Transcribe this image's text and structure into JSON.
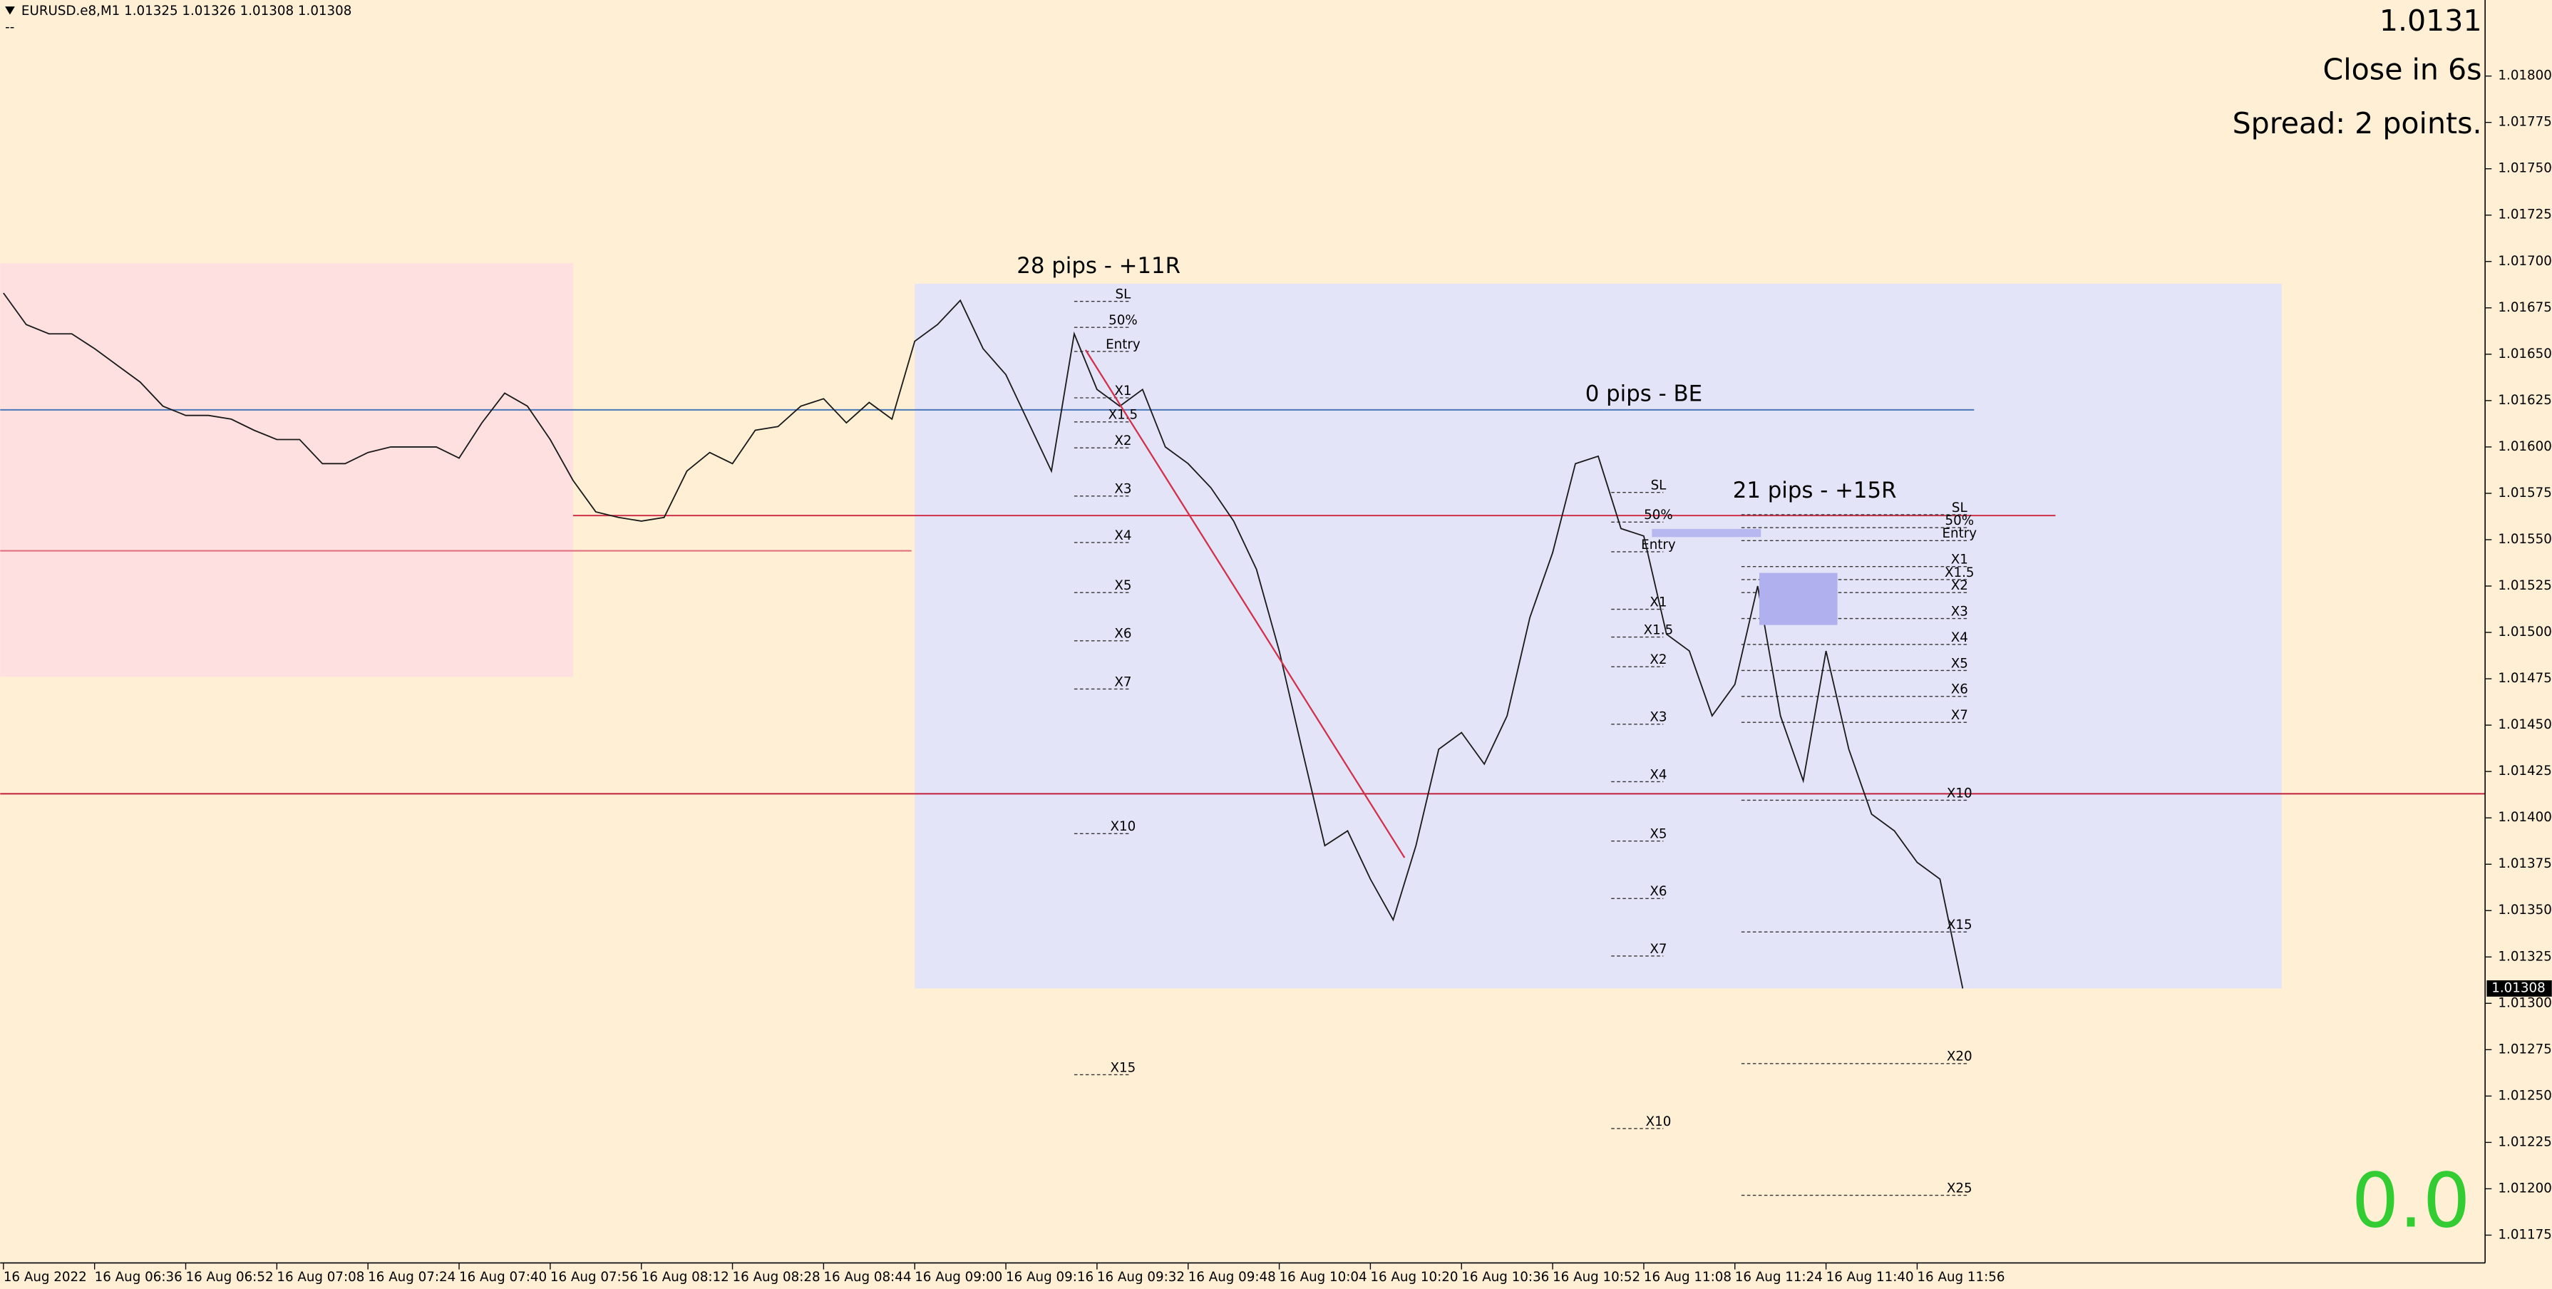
{
  "header": {
    "symbol_line": "EURUSD.e8,M1  1.01325 1.01326 1.01308 1.01308",
    "sub": "--"
  },
  "info": {
    "price": "1.0131",
    "countdown": "Close in 6s",
    "spread": "Spread: 2 points.",
    "profit": "0.0"
  },
  "chart": {
    "type": "price-line",
    "color": "#1a1a1a",
    "values": [
      1.01683,
      1.01666,
      1.01661,
      1.01661,
      1.01653,
      1.01644,
      1.01635,
      1.01622,
      1.01617,
      1.01617,
      1.01615,
      1.01609,
      1.01604,
      1.01604,
      1.01591,
      1.01591,
      1.01597,
      1.016,
      1.016,
      1.016,
      1.01594,
      1.01613,
      1.01629,
      1.01622,
      1.01604,
      1.01582,
      1.01565,
      1.01562,
      1.0156,
      1.01562,
      1.01587,
      1.01597,
      1.01591,
      1.01609,
      1.01611,
      1.01622,
      1.01626,
      1.01613,
      1.01624,
      1.01615,
      1.01657,
      1.01666,
      1.01679,
      1.01653,
      1.01639,
      1.01613,
      1.01587,
      1.01661,
      1.01631,
      1.01622,
      1.01631,
      1.016,
      1.01591,
      1.01578,
      1.0156,
      1.01534,
      1.0149,
      1.01437,
      1.01385,
      1.01393,
      1.01367,
      1.01345,
      1.01385,
      1.01437,
      1.01446,
      1.01429,
      1.01455,
      1.01508,
      1.01543,
      1.01591,
      1.01595,
      1.01556,
      1.01552,
      1.01499,
      1.0149,
      1.01455,
      1.01472,
      1.01525,
      1.01455,
      1.0142,
      1.0149,
      1.01437,
      1.01402,
      1.01393,
      1.01376,
      1.01367,
      1.01308
    ],
    "ylim": [
      1.0116,
      1.01841
    ],
    "yticks": [
      {
        "value": 1.018,
        "label": "1.01800"
      },
      {
        "value": 1.01775,
        "label": "1.01775"
      },
      {
        "value": 1.0175,
        "label": "1.01750"
      },
      {
        "value": 1.01725,
        "label": "1.01725"
      },
      {
        "value": 1.017,
        "label": "1.01700"
      },
      {
        "value": 1.01675,
        "label": "1.01675"
      },
      {
        "value": 1.0165,
        "label": "1.01650"
      },
      {
        "value": 1.01625,
        "label": "1.01625"
      },
      {
        "value": 1.016,
        "label": "1.01600"
      },
      {
        "value": 1.01575,
        "label": "1.01575"
      },
      {
        "value": 1.0155,
        "label": "1.01550"
      },
      {
        "value": 1.01525,
        "label": "1.01525"
      },
      {
        "value": 1.015,
        "label": "1.01500"
      },
      {
        "value": 1.01475,
        "label": "1.01475"
      },
      {
        "value": 1.0145,
        "label": "1.01450"
      },
      {
        "value": 1.01425,
        "label": "1.01425"
      },
      {
        "value": 1.014,
        "label": "1.01400"
      },
      {
        "value": 1.01375,
        "label": "1.01375"
      },
      {
        "value": 1.0135,
        "label": "1.01350"
      },
      {
        "value": 1.01325,
        "label": "1.01325"
      },
      {
        "value": 1.013,
        "label": "1.01300"
      },
      {
        "value": 1.01275,
        "label": "1.01275"
      },
      {
        "value": 1.0125,
        "label": "1.01250"
      },
      {
        "value": 1.01225,
        "label": "1.01225"
      },
      {
        "value": 1.012,
        "label": "1.01200"
      },
      {
        "value": 1.01175,
        "label": "1.01175"
      }
    ],
    "current": {
      "value": 1.01308,
      "label": "1.01308"
    },
    "categories": [
      "16 Aug 2022",
      "16 Aug 06:36",
      "16 Aug 06:52",
      "16 Aug 07:08",
      "16 Aug 07:24",
      "16 Aug 07:40",
      "16 Aug 07:56",
      "16 Aug 08:12",
      "16 Aug 08:28",
      "16 Aug 08:44",
      "16 Aug 09:00",
      "16 Aug 09:16",
      "16 Aug 09:32",
      "16 Aug 09:48",
      "16 Aug 10:04",
      "16 Aug 10:20",
      "16 Aug 10:36",
      "16 Aug 10:52",
      "16 Aug 11:08",
      "16 Aug 11:24",
      "16 Aug 11:40",
      "16 Aug 11:56"
    ],
    "levels": [
      {
        "value": 1.0162,
        "color": "#4a78b8"
      },
      {
        "value": 1.01563,
        "color": "#d0304a"
      },
      {
        "value": 1.01544,
        "color": "#e07080"
      },
      {
        "value": 1.01413,
        "color": "#c0203a"
      }
    ],
    "zones": [
      {
        "from": 1.01699,
        "to": 1.01476,
        "color": "#ffe0e0"
      },
      {
        "from": 1.01688,
        "to": 1.01308,
        "color": "#e4e4f8"
      }
    ],
    "trades": [
      {
        "title": "28 pips - +11R",
        "title_price": 1.01697,
        "labels": [
          "SL",
          "50%",
          "Entry",
          "X1",
          "X1.5",
          "X2",
          "X3",
          "X4",
          "X5",
          "X6",
          "X7",
          "X10",
          "X15"
        ],
        "prices": [
          1.01682,
          1.01668,
          1.01655,
          1.0163,
          1.01617,
          1.01603,
          1.01577,
          1.01552,
          1.01525,
          1.01499,
          1.01473,
          1.01395,
          1.01265
        ]
      },
      {
        "title": "0 pips - BE",
        "title_price": 1.01628,
        "labels": [
          "SL",
          "50%",
          "Entry",
          "X1",
          "X1.5",
          "X2",
          "X3",
          "X4",
          "X5",
          "X6",
          "X7",
          "X10"
        ],
        "prices": [
          1.01579,
          1.01563,
          1.01547,
          1.01516,
          1.01501,
          1.01485,
          1.01454,
          1.01423,
          1.01391,
          1.0136,
          1.01329,
          1.01236
        ]
      },
      {
        "title": "21 pips - +15R",
        "title_price": 1.01576,
        "labels": [
          "SL",
          "50%",
          "Entry",
          "X1",
          "X1.5",
          "X2",
          "X3",
          "X4",
          "X5",
          "X6",
          "X7",
          "X10",
          "X15",
          "X20",
          "X25"
        ],
        "prices": [
          1.01567,
          1.0156,
          1.01553,
          1.01539,
          1.01532,
          1.01525,
          1.01511,
          1.01497,
          1.01483,
          1.01469,
          1.01455,
          1.01413,
          1.01342,
          1.01271,
          1.012
        ]
      }
    ]
  }
}
